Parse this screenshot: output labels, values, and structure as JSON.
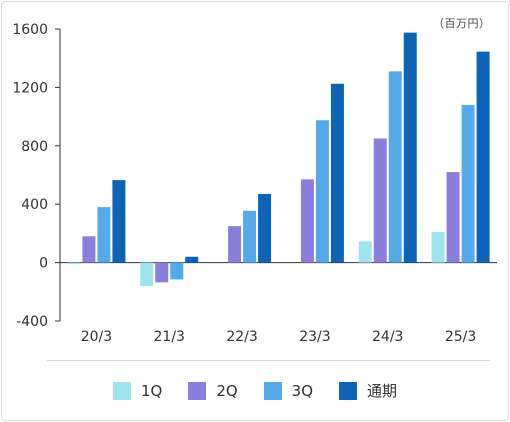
{
  "chart_data": {
    "type": "bar",
    "unit_label": "（百万円）",
    "categories": [
      "20/3",
      "21/3",
      "22/3",
      "23/3",
      "24/3",
      "25/3"
    ],
    "series": [
      {
        "name": "1Q",
        "color": "#9ee3f0",
        "values": [
          -10,
          -160,
          0,
          0,
          145,
          210
        ]
      },
      {
        "name": "2Q",
        "color": "#8a7fdc",
        "values": [
          180,
          -135,
          250,
          570,
          850,
          620
        ]
      },
      {
        "name": "3Q",
        "color": "#55aaea",
        "values": [
          380,
          -115,
          355,
          975,
          1310,
          1080
        ]
      },
      {
        "name": "通期",
        "color": "#0d63b6",
        "values": [
          565,
          40,
          470,
          1225,
          1575,
          1445
        ]
      }
    ],
    "ylim": [
      -400,
      1600
    ],
    "yticks": [
      -400,
      0,
      400,
      800,
      1200,
      1600
    ],
    "grid": false,
    "legend_position": "bottom"
  }
}
